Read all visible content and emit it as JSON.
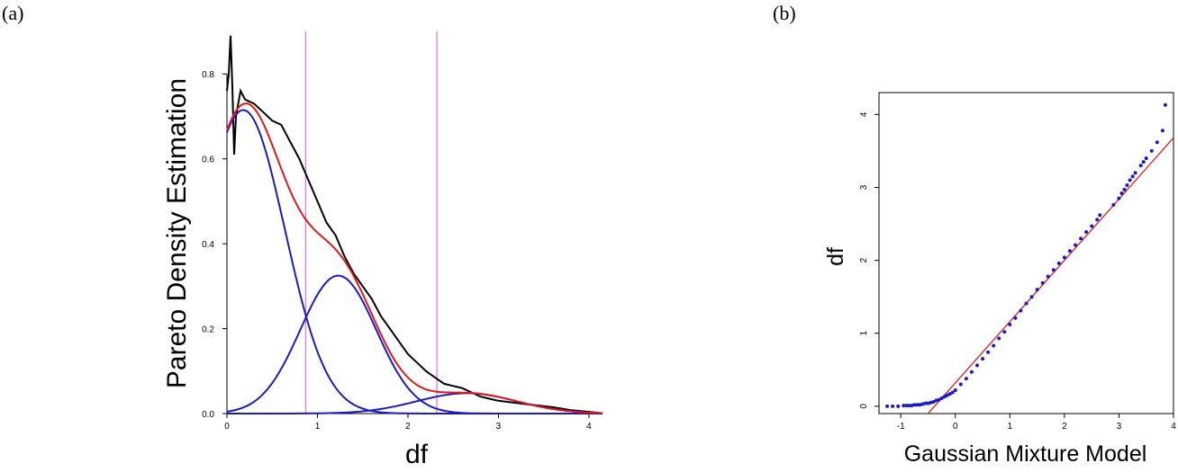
{
  "panels": {
    "a": "(a)",
    "b": "(b)"
  },
  "chart_data": [
    {
      "type": "line",
      "xlabel": "df",
      "ylabel": "Pareto Density Estimation",
      "xlim": [
        0,
        4.15
      ],
      "ylim": [
        0,
        0.9
      ],
      "xticks": [
        0,
        1,
        2,
        3,
        4
      ],
      "yticks": [
        0.0,
        0.2,
        0.4,
        0.6,
        0.8
      ],
      "xtick_labels": [
        "0",
        "1",
        "2",
        "3",
        "4"
      ],
      "ytick_labels": [
        "0.0",
        "0.2",
        "0.4",
        "0.6",
        "0.8"
      ],
      "vlines": {
        "x": [
          0.87,
          2.32
        ],
        "color": "#e07be0"
      },
      "components": [
        {
          "mean": 0.18,
          "sd": 0.46,
          "peak": 0.715,
          "color": "#1a1ac8"
        },
        {
          "mean": 1.23,
          "sd": 0.42,
          "peak": 0.325,
          "color": "#1a1ac8"
        },
        {
          "mean": 2.65,
          "sd": 0.55,
          "peak": 0.048,
          "color": "#1a1ac8"
        }
      ],
      "mixture_color": "#e01a1a",
      "empirical": {
        "color": "#000000",
        "x": [
          0.0,
          0.02,
          0.04,
          0.06,
          0.08,
          0.1,
          0.15,
          0.2,
          0.3,
          0.4,
          0.5,
          0.6,
          0.7,
          0.8,
          0.9,
          1.0,
          1.1,
          1.2,
          1.3,
          1.4,
          1.5,
          1.6,
          1.7,
          1.8,
          1.9,
          2.0,
          2.1,
          2.2,
          2.3,
          2.4,
          2.5,
          2.6,
          2.7,
          2.8,
          2.9,
          3.0,
          3.2,
          3.4,
          3.6,
          3.8,
          4.0,
          4.1
        ],
        "y": [
          0.76,
          0.8,
          0.89,
          0.77,
          0.61,
          0.7,
          0.76,
          0.74,
          0.73,
          0.71,
          0.69,
          0.68,
          0.64,
          0.6,
          0.55,
          0.5,
          0.45,
          0.42,
          0.37,
          0.33,
          0.3,
          0.27,
          0.23,
          0.2,
          0.17,
          0.14,
          0.12,
          0.1,
          0.085,
          0.07,
          0.065,
          0.06,
          0.05,
          0.04,
          0.035,
          0.03,
          0.025,
          0.02,
          0.015,
          0.008,
          0.004,
          0.002
        ]
      }
    },
    {
      "type": "scatter",
      "xlabel": "Gaussian Mixture Model",
      "ylabel": "df",
      "xlim": [
        -1.4,
        4.0
      ],
      "ylim": [
        -0.1,
        4.3
      ],
      "xticks": [
        -1,
        0,
        1,
        2,
        3,
        4
      ],
      "yticks": [
        0,
        1,
        2,
        3,
        4
      ],
      "xtick_labels": [
        "-1",
        "0",
        "1",
        "2",
        "3",
        "4"
      ],
      "ytick_labels": [
        "0",
        "1",
        "2",
        "3",
        "4"
      ],
      "point_color": "#1a1ac8",
      "line_color": "#e01a1a",
      "reference_line": {
        "x": [
          -0.62,
          4.0
        ],
        "y": [
          -0.2,
          3.68
        ]
      },
      "points": {
        "x": [
          -1.25,
          -1.15,
          -1.05,
          -0.95,
          -0.9,
          -0.85,
          -0.8,
          -0.75,
          -0.7,
          -0.65,
          -0.6,
          -0.55,
          -0.5,
          -0.45,
          -0.4,
          -0.35,
          -0.3,
          -0.25,
          -0.2,
          -0.15,
          -0.1,
          -0.05,
          0.0,
          0.1,
          0.2,
          0.3,
          0.4,
          0.5,
          0.6,
          0.7,
          0.8,
          0.9,
          1.0,
          1.1,
          1.2,
          1.3,
          1.4,
          1.5,
          1.6,
          1.7,
          1.8,
          1.9,
          2.0,
          2.1,
          2.2,
          2.3,
          2.4,
          2.5,
          2.6,
          2.65,
          2.9,
          3.0,
          3.05,
          3.1,
          3.15,
          3.2,
          3.25,
          3.3,
          3.4,
          3.45,
          3.5,
          3.6,
          3.7,
          3.8,
          3.85
        ],
        "y": [
          0.0,
          0.0,
          0.0,
          0.01,
          0.01,
          0.01,
          0.01,
          0.02,
          0.02,
          0.02,
          0.03,
          0.04,
          0.04,
          0.05,
          0.06,
          0.08,
          0.09,
          0.11,
          0.13,
          0.15,
          0.17,
          0.19,
          0.22,
          0.3,
          0.38,
          0.47,
          0.56,
          0.65,
          0.74,
          0.83,
          0.93,
          1.02,
          1.12,
          1.21,
          1.31,
          1.41,
          1.5,
          1.6,
          1.69,
          1.78,
          1.87,
          1.96,
          2.04,
          2.13,
          2.21,
          2.3,
          2.39,
          2.47,
          2.56,
          2.62,
          2.76,
          2.85,
          2.92,
          2.97,
          3.03,
          3.1,
          3.15,
          3.2,
          3.3,
          3.35,
          3.4,
          3.5,
          3.62,
          3.78,
          4.13
        ]
      }
    }
  ]
}
